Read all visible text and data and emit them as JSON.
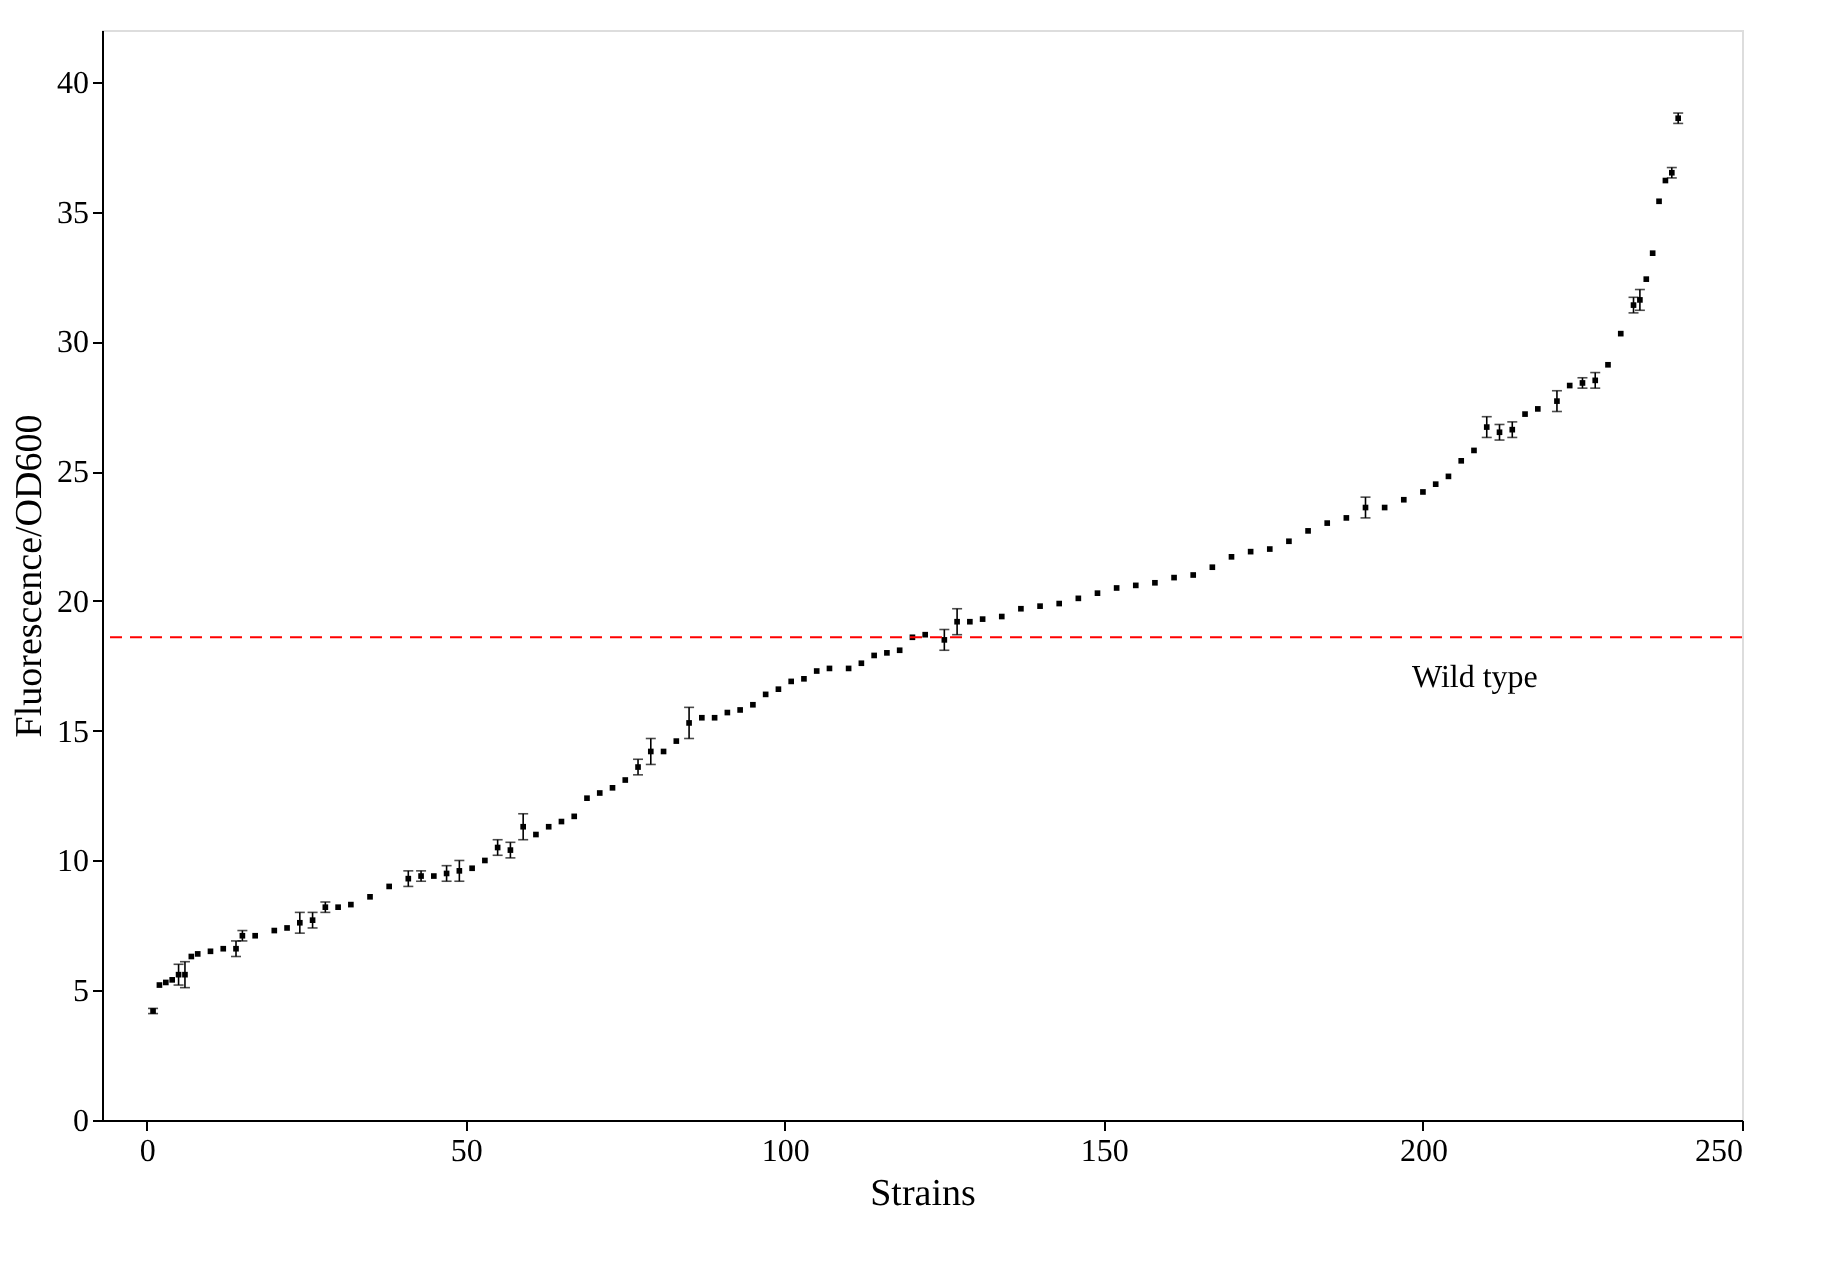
{
  "chart_data": {
    "type": "scatter",
    "xlabel": "Strains",
    "ylabel": "Fluorescence/OD600",
    "xlim": [
      -7,
      250
    ],
    "xticks": [
      0,
      50,
      100,
      150,
      200,
      250
    ],
    "ylim": [
      0,
      42
    ],
    "yticks": [
      0,
      5,
      10,
      15,
      20,
      25,
      30,
      35,
      40
    ],
    "grid": false,
    "marker": "square",
    "x": [
      1,
      2,
      3,
      4,
      5,
      6,
      7,
      8,
      10,
      12,
      14,
      15,
      17,
      20,
      22,
      24,
      26,
      28,
      30,
      32,
      35,
      38,
      41,
      43,
      45,
      47,
      49,
      51,
      53,
      55,
      57,
      59,
      61,
      63,
      65,
      67,
      69,
      71,
      73,
      75,
      77,
      79,
      81,
      83,
      85,
      87,
      89,
      91,
      93,
      95,
      97,
      99,
      101,
      103,
      105,
      107,
      110,
      112,
      114,
      116,
      118,
      120,
      122,
      125,
      127,
      129,
      131,
      134,
      137,
      140,
      143,
      146,
      149,
      152,
      155,
      158,
      161,
      164,
      167,
      170,
      173,
      176,
      179,
      182,
      185,
      188,
      191,
      194,
      197,
      200,
      202,
      204,
      206,
      208,
      210,
      212,
      214,
      216,
      218,
      221,
      223,
      225,
      227,
      229,
      231,
      233,
      234,
      235,
      236,
      237,
      238,
      239,
      240
    ],
    "series": [
      {
        "color": "#000000",
        "values": [
          4.2,
          5.2,
          5.3,
          5.4,
          5.6,
          5.6,
          6.3,
          6.4,
          6.5,
          6.6,
          6.6,
          7.1,
          7.1,
          7.3,
          7.4,
          7.6,
          7.7,
          8.2,
          8.2,
          8.3,
          8.6,
          9.0,
          9.3,
          9.4,
          9.4,
          9.5,
          9.6,
          9.7,
          10.0,
          10.5,
          10.4,
          11.3,
          11.0,
          11.3,
          11.5,
          11.7,
          12.4,
          12.6,
          12.8,
          13.1,
          13.6,
          14.2,
          14.2,
          14.6,
          15.3,
          15.5,
          15.5,
          15.7,
          15.8,
          16.0,
          16.4,
          16.6,
          16.9,
          17.0,
          17.3,
          17.4,
          17.4,
          17.6,
          17.9,
          18.0,
          18.1,
          18.6,
          18.7,
          18.5,
          19.2,
          19.2,
          19.3,
          19.4,
          19.7,
          19.8,
          19.9,
          20.1,
          20.3,
          20.5,
          20.6,
          20.7,
          20.9,
          21.0,
          21.3,
          21.7,
          21.9,
          22.0,
          22.3,
          22.7,
          23.0,
          23.2,
          23.6,
          23.6,
          23.9,
          24.2,
          24.5,
          24.8,
          25.4,
          25.8,
          26.7,
          26.5,
          26.6,
          27.2,
          27.4,
          27.7,
          28.3,
          28.4,
          28.5,
          29.1,
          30.3,
          31.4,
          31.6,
          32.4,
          33.4,
          35.4,
          36.2,
          36.5,
          38.6
        ],
        "errors": [
          0.1,
          null,
          null,
          null,
          0.4,
          0.5,
          null,
          null,
          null,
          null,
          0.3,
          0.2,
          null,
          null,
          null,
          0.4,
          0.3,
          0.2,
          null,
          null,
          null,
          null,
          0.3,
          0.2,
          null,
          0.3,
          0.4,
          null,
          null,
          0.3,
          0.3,
          0.5,
          null,
          null,
          null,
          null,
          null,
          null,
          null,
          null,
          0.3,
          0.5,
          null,
          null,
          0.6,
          null,
          null,
          null,
          null,
          null,
          null,
          null,
          null,
          null,
          null,
          null,
          null,
          null,
          null,
          null,
          null,
          null,
          null,
          0.4,
          0.5,
          null,
          null,
          null,
          null,
          null,
          null,
          null,
          null,
          null,
          null,
          null,
          null,
          null,
          null,
          null,
          null,
          null,
          null,
          null,
          null,
          null,
          0.4,
          null,
          null,
          null,
          null,
          null,
          null,
          null,
          0.4,
          0.3,
          0.3,
          null,
          null,
          0.4,
          null,
          0.2,
          0.3,
          null,
          null,
          0.3,
          0.4,
          null,
          null,
          null,
          null,
          0.2,
          0.2
        ]
      }
    ],
    "ref_lines": [
      {
        "axis": "y",
        "value": 18.6,
        "label": "Wild type",
        "color": "#ff0000",
        "line_style": "dashed"
      }
    ]
  }
}
